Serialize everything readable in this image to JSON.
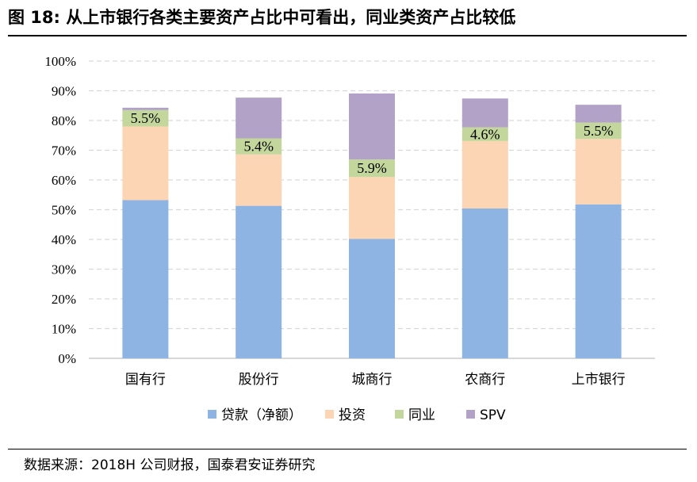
{
  "figure": {
    "title": "图 18: 从上市银行各类主要资产占比中可看出，同业类资产占比较低",
    "source": "数据来源：2018H 公司财报，国泰君安证券研究"
  },
  "chart_data": {
    "type": "bar",
    "stacked": true,
    "title": "",
    "xlabel": "",
    "ylabel": "",
    "ylim": [
      0,
      100
    ],
    "yticks": [
      "0%",
      "10%",
      "20%",
      "30%",
      "40%",
      "50%",
      "60%",
      "70%",
      "80%",
      "90%",
      "100%"
    ],
    "categories": [
      "国有行",
      "股份行",
      "城商行",
      "农商行",
      "上市银行"
    ],
    "grid": true,
    "legend_position": "bottom",
    "series": [
      {
        "name": "贷款（净额）",
        "color": "#8eb4e3",
        "values": [
          53.2,
          51.3,
          40.2,
          50.4,
          51.8
        ]
      },
      {
        "name": "投资",
        "color": "#fcd5b5",
        "values": [
          24.8,
          17.3,
          20.8,
          22.7,
          22.0
        ]
      },
      {
        "name": "同业",
        "color": "#c3d69b",
        "values": [
          5.5,
          5.4,
          5.9,
          4.6,
          5.5
        ]
      },
      {
        "name": "SPV",
        "color": "#b3a2c7",
        "values": [
          0.8,
          13.7,
          22.2,
          9.7,
          6.0
        ]
      }
    ],
    "data_labels": {
      "series": "同业",
      "texts": [
        "5.5%",
        "5.4%",
        "5.9%",
        "4.6%",
        "5.5%"
      ]
    }
  }
}
